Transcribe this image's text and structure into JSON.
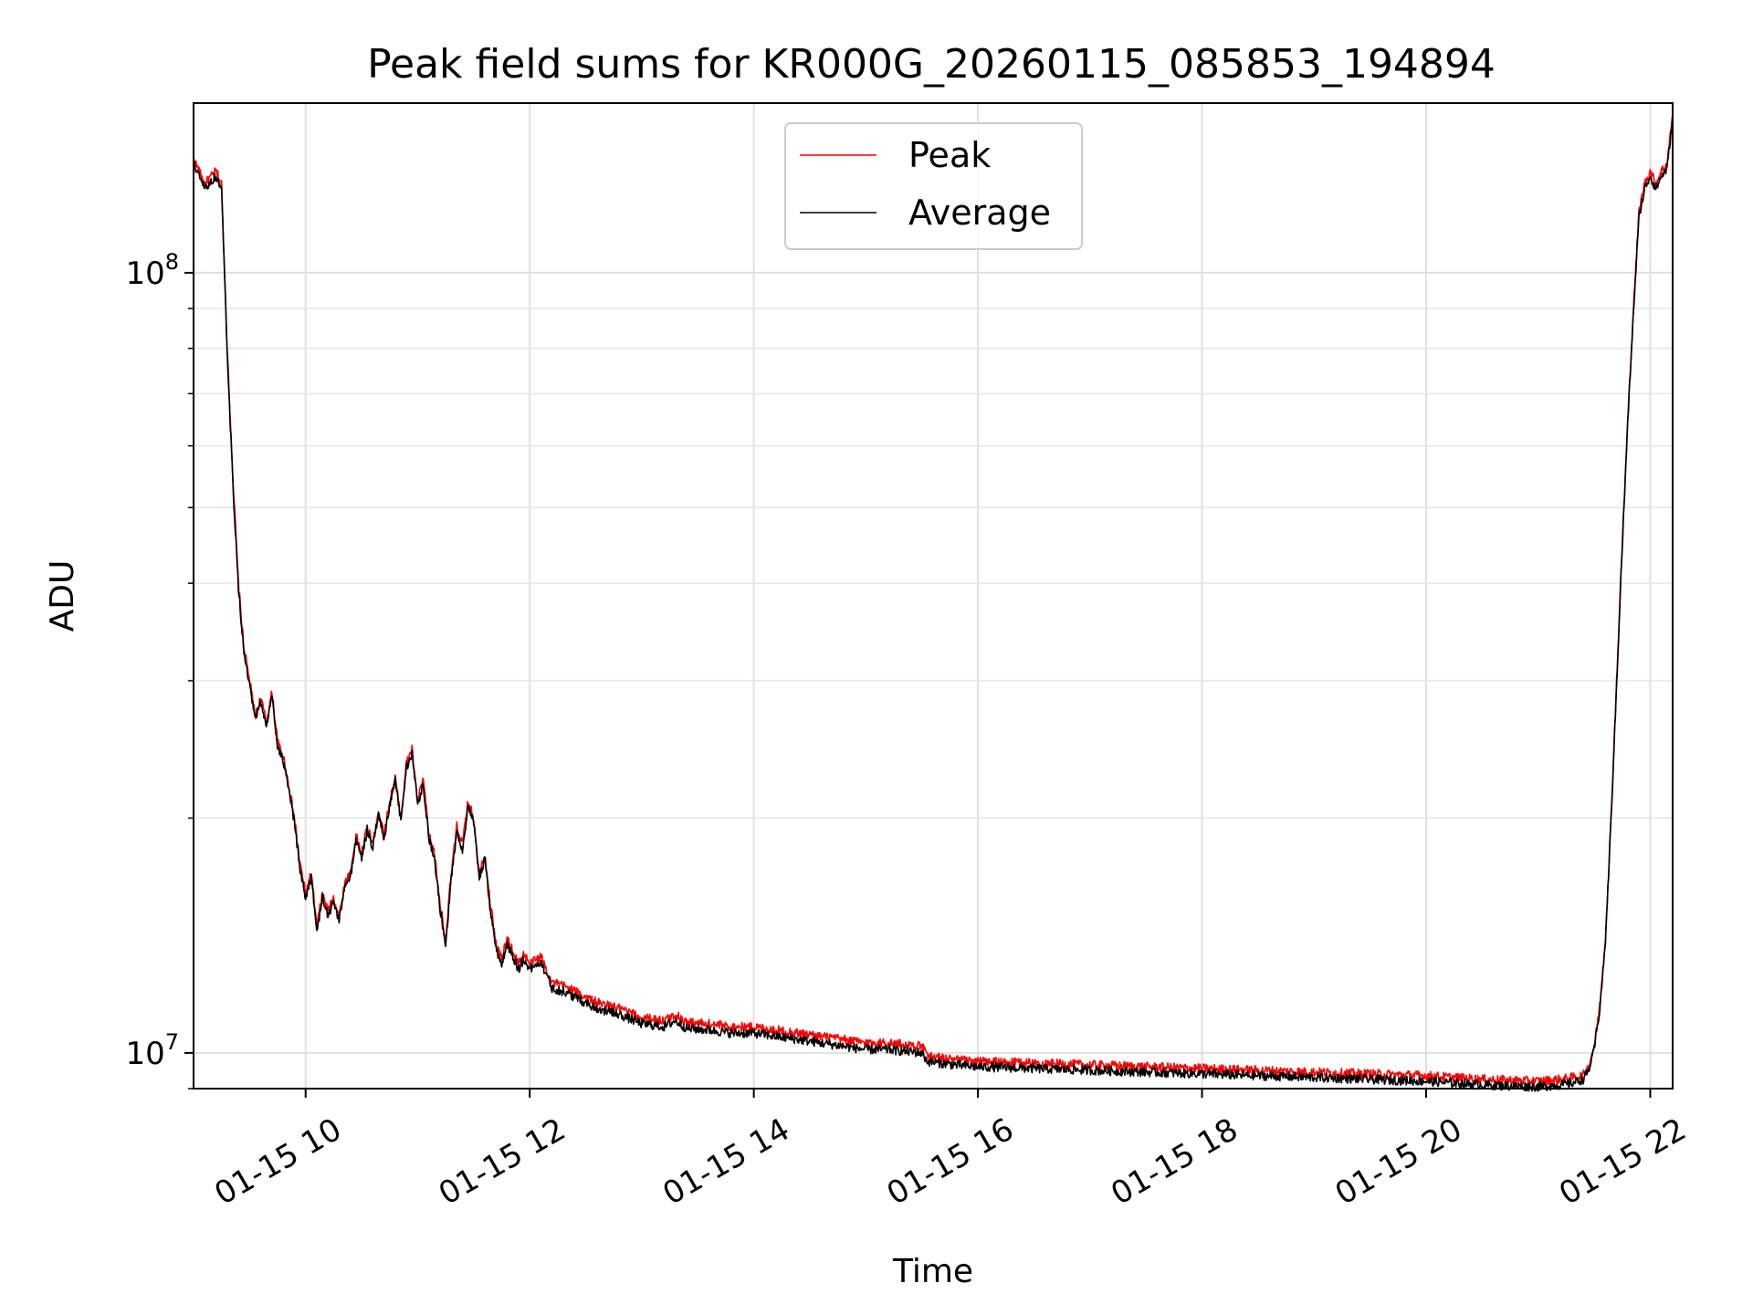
{
  "chart_data": {
    "type": "line",
    "title": "Peak field sums for KR000G_20260115_085853_194894",
    "xlabel": "Time",
    "ylabel": "ADU",
    "yscale": "log",
    "ylim": [
      9000000,
      165000000
    ],
    "xlim_hours": [
      9.0,
      22.2
    ],
    "x_ticks": [
      {
        "value": 10,
        "label": "01-15 10"
      },
      {
        "value": 12,
        "label": "01-15 12"
      },
      {
        "value": 14,
        "label": "01-15 14"
      },
      {
        "value": 16,
        "label": "01-15 16"
      },
      {
        "value": 18,
        "label": "01-15 18"
      },
      {
        "value": 20,
        "label": "01-15 20"
      },
      {
        "value": 22,
        "label": "01-15 22"
      }
    ],
    "y_ticks_major": [
      {
        "value": 10000000,
        "base": "10",
        "exp": "7"
      },
      {
        "value": 100000000,
        "base": "10",
        "exp": "8"
      }
    ],
    "y_ticks_minor": [
      9000000,
      20000000,
      30000000,
      40000000,
      50000000,
      60000000,
      70000000,
      80000000,
      90000000
    ],
    "grid": true,
    "legend_position": "top-center",
    "x_hours": [
      9.0,
      9.1,
      9.2,
      9.25,
      9.3,
      9.35,
      9.4,
      9.45,
      9.5,
      9.55,
      9.6,
      9.65,
      9.7,
      9.75,
      9.8,
      9.85,
      9.9,
      9.95,
      10.0,
      10.05,
      10.1,
      10.15,
      10.2,
      10.25,
      10.3,
      10.35,
      10.4,
      10.45,
      10.5,
      10.55,
      10.6,
      10.65,
      10.7,
      10.75,
      10.8,
      10.85,
      10.9,
      10.95,
      11.0,
      11.05,
      11.1,
      11.15,
      11.2,
      11.25,
      11.3,
      11.35,
      11.4,
      11.45,
      11.5,
      11.55,
      11.6,
      11.65,
      11.7,
      11.75,
      11.8,
      11.85,
      11.9,
      11.95,
      12.0,
      12.1,
      12.2,
      12.3,
      12.4,
      12.6,
      12.8,
      13.0,
      13.2,
      13.3,
      13.4,
      13.6,
      13.8,
      14.0,
      14.2,
      14.4,
      14.6,
      14.8,
      15.0,
      15.2,
      15.5,
      15.55,
      15.8,
      16.0,
      16.5,
      17.0,
      17.5,
      18.0,
      18.5,
      19.0,
      19.5,
      20.0,
      20.5,
      21.0,
      21.2,
      21.3,
      21.4,
      21.45,
      21.5,
      21.55,
      21.6,
      21.65,
      21.7,
      21.75,
      21.8,
      21.85,
      21.9,
      21.95,
      22.0,
      22.05,
      22.1,
      22.15,
      22.2
    ],
    "series": [
      {
        "name": "Peak",
        "color": "#ff0000",
        "values": [
          140000000,
          130000000,
          135000000,
          130000000,
          80000000,
          55000000,
          40000000,
          33000000,
          30000000,
          27000000,
          28500000,
          26500000,
          29000000,
          25000000,
          24000000,
          22000000,
          20000000,
          17500000,
          16000000,
          17000000,
          14500000,
          16000000,
          15200000,
          15800000,
          15000000,
          16500000,
          17000000,
          19000000,
          18000000,
          19500000,
          18500000,
          20500000,
          19000000,
          21000000,
          22500000,
          20000000,
          23500000,
          24500000,
          21000000,
          22500000,
          19000000,
          18000000,
          15500000,
          14000000,
          17000000,
          19500000,
          18500000,
          21000000,
          20000000,
          17000000,
          18000000,
          15500000,
          13800000,
          13200000,
          14000000,
          13500000,
          13000000,
          13400000,
          13000000,
          13300000,
          12300000,
          12200000,
          12000000,
          11600000,
          11400000,
          11100000,
          11000000,
          11200000,
          10950000,
          10900000,
          10800000,
          10800000,
          10700000,
          10600000,
          10500000,
          10400000,
          10300000,
          10300000,
          10200000,
          9900000,
          9800000,
          9750000,
          9700000,
          9650000,
          9600000,
          9550000,
          9500000,
          9450000,
          9400000,
          9350000,
          9250000,
          9200000,
          9250000,
          9300000,
          9350000,
          9600000,
          10200000,
          11500000,
          14000000,
          20000000,
          30000000,
          45000000,
          65000000,
          90000000,
          120000000,
          130000000,
          135000000,
          130000000,
          135000000,
          138000000,
          160000000
        ]
      },
      {
        "name": "Average",
        "color": "#000000",
        "values": [
          138000000,
          128000000,
          133000000,
          128000000,
          79000000,
          54000000,
          39500000,
          32500000,
          29500000,
          26700000,
          28200000,
          26200000,
          28700000,
          24700000,
          23700000,
          21700000,
          19700000,
          17200000,
          15800000,
          16800000,
          14300000,
          15800000,
          15000000,
          15600000,
          14800000,
          16300000,
          16800000,
          18800000,
          17800000,
          19300000,
          18300000,
          20300000,
          18800000,
          20800000,
          22300000,
          19800000,
          23200000,
          24200000,
          20800000,
          22200000,
          18800000,
          17800000,
          15300000,
          13800000,
          16800000,
          19200000,
          18200000,
          20700000,
          19700000,
          16800000,
          17700000,
          15200000,
          13600000,
          13000000,
          13800000,
          13300000,
          12800000,
          13200000,
          12800000,
          13100000,
          12100000,
          12000000,
          11800000,
          11400000,
          11200000,
          10900000,
          10800000,
          11000000,
          10750000,
          10700000,
          10600000,
          10600000,
          10500000,
          10400000,
          10300000,
          10200000,
          10100000,
          10100000,
          10000000,
          9750000,
          9650000,
          9600000,
          9550000,
          9500000,
          9450000,
          9400000,
          9350000,
          9300000,
          9250000,
          9200000,
          9100000,
          9050000,
          9100000,
          9150000,
          9250000,
          9500000,
          10100000,
          11400000,
          13900000,
          19800000,
          29700000,
          44500000,
          64500000,
          89000000,
          118000000,
          128000000,
          133000000,
          128000000,
          133000000,
          136000000,
          158000000
        ]
      }
    ]
  }
}
